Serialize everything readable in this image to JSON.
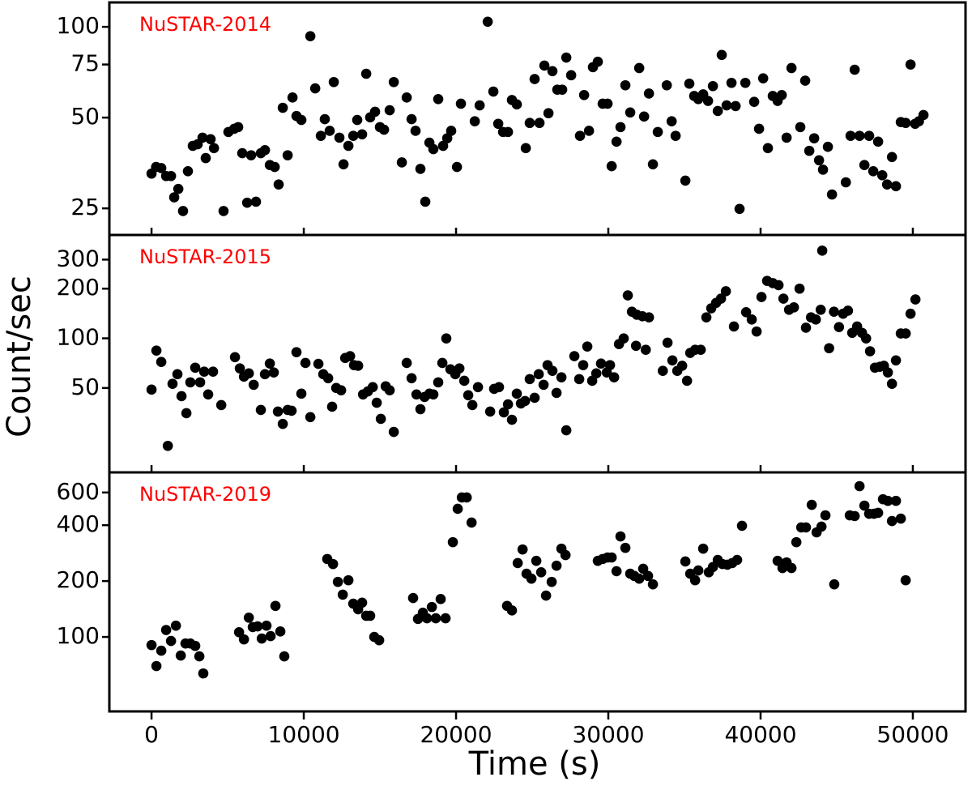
{
  "xlabel": "Time (s)",
  "ylabel": "Count/sec",
  "chart_data": [
    {
      "type": "scatter",
      "title": "NuSTAR-2014",
      "color": "#000000",
      "title_color": "#ff0000",
      "log_y": true,
      "xlim": [
        -2770,
        53460
      ],
      "ylim": [
        20.4,
        120.5
      ],
      "xticks": [
        0,
        10000,
        20000,
        30000,
        40000,
        50000
      ],
      "yticks": [
        25,
        50,
        75,
        100
      ],
      "x": [
        0,
        300,
        640,
        960,
        1280,
        1490,
        1760,
        2070,
        2390,
        2710,
        3030,
        3350,
        3560,
        3880,
        4100,
        4730,
        5050,
        5430,
        5690,
        5960,
        6280,
        6540,
        6860,
        7180,
        7450,
        7770,
        8090,
        8350,
        8620,
        8940,
        9260,
        9520,
        9840,
        10430,
        10750,
        11120,
        11380,
        11700,
        11970,
        12340,
        12610,
        12930,
        13250,
        13510,
        13830,
        14100,
        14360,
        14680,
        15000,
        15270,
        15640,
        15910,
        16440,
        16760,
        17080,
        17340,
        17660,
        17980,
        18250,
        18510,
        18830,
        19150,
        19420,
        19680,
        20060,
        20320,
        21230,
        21550,
        22080,
        22450,
        22770,
        23090,
        23410,
        23670,
        23990,
        24580,
        24840,
        25160,
        25480,
        25800,
        26070,
        26330,
        26650,
        26970,
        27240,
        27560,
        28140,
        28410,
        28730,
        28990,
        29310,
        29630,
        29950,
        30220,
        30540,
        30800,
        31120,
        31440,
        32030,
        32350,
        32670,
        32930,
        33250,
        33840,
        34160,
        34420,
        35060,
        35320,
        35640,
        35910,
        36230,
        36550,
        36870,
        37190,
        37450,
        37770,
        38090,
        38360,
        38620,
        39000,
        39580,
        39900,
        40170,
        40480,
        40800,
        41120,
        41390,
        41710,
        42030,
        42610,
        42930,
        43200,
        43520,
        43840,
        44100,
        44420,
        44690,
        45600,
        45910,
        46180,
        46500,
        46820,
        47130,
        47400,
        47720,
        47990,
        48310,
        48630,
        48890,
        49210,
        49530,
        49850,
        50150,
        50400,
        50700
      ],
      "values": [
        32.6,
        34.3,
        34.0,
        32.0,
        32.0,
        27.2,
        29.0,
        24.5,
        33.2,
        40.3,
        40.8,
        42.9,
        36.7,
        42.4,
        39.6,
        24.5,
        44.8,
        45.9,
        46.5,
        38.1,
        26.1,
        37.5,
        26.3,
        38.1,
        39.0,
        34.8,
        34.3,
        30.0,
        53.9,
        37.5,
        58.3,
        50.6,
        49.1,
        93.1,
        62.5,
        43.5,
        49.4,
        45.2,
        65.6,
        42.9,
        35.0,
        40.3,
        43.5,
        49.1,
        44.0,
        69.9,
        50.1,
        52.3,
        46.5,
        45.6,
        52.9,
        65.6,
        35.5,
        58.3,
        49.4,
        45.2,
        33.8,
        26.3,
        41.3,
        39.3,
        57.6,
        40.3,
        42.7,
        45.2,
        34.3,
        55.6,
        48.6,
        54.9,
        104.0,
        61.0,
        47.7,
        44.8,
        44.8,
        57.2,
        55.3,
        39.6,
        48.0,
        67.1,
        48.0,
        74.4,
        51.7,
        71.3,
        61.9,
        61.9,
        79.1,
        69.1,
        43.5,
        59.4,
        45.2,
        73.5,
        76.6,
        55.6,
        55.6,
        34.5,
        41.6,
        46.5,
        64.0,
        52.0,
        73.0,
        50.4,
        60.1,
        35.0,
        44.8,
        64.0,
        48.6,
        43.5,
        30.9,
        64.8,
        59.0,
        57.6,
        59.7,
        56.8,
        63.6,
        52.6,
        80.7,
        54.9,
        65.2,
        54.6,
        24.9,
        65.2,
        56.4,
        45.9,
        67.5,
        39.6,
        59.0,
        56.8,
        59.4,
        42.9,
        73.0,
        46.5,
        66.3,
        38.8,
        42.7,
        36.1,
        33.6,
        40.0,
        27.8,
        30.5,
        43.5,
        72.1,
        43.5,
        34.8,
        43.5,
        33.2,
        41.6,
        32.2,
        30.0,
        37.0,
        29.6,
        48.3,
        48.0,
        75.0,
        47.7,
        48.6,
        51.0
      ]
    },
    {
      "type": "scatter",
      "title": "NuSTAR-2015",
      "color": "#000000",
      "title_color": "#ff0000",
      "log_y": true,
      "xlim": [
        -2770,
        53460
      ],
      "ylim": [
        15.4,
        423
      ],
      "xticks": [
        0,
        10000,
        20000,
        30000,
        40000,
        50000
      ],
      "yticks": [
        50,
        100,
        200,
        300
      ],
      "x": [
        0,
        320,
        640,
        1070,
        1380,
        1700,
        1970,
        2290,
        2550,
        2870,
        3190,
        3460,
        3720,
        4040,
        4580,
        5480,
        5800,
        6070,
        6390,
        6710,
        7180,
        7450,
        7770,
        8030,
        8300,
        8620,
        8940,
        9200,
        9520,
        9840,
        10110,
        10430,
        10960,
        11280,
        11600,
        11860,
        12130,
        12450,
        12720,
        13040,
        13300,
        13570,
        13890,
        14210,
        14530,
        14790,
        15060,
        15380,
        15640,
        15910,
        16760,
        17080,
        17400,
        17660,
        17930,
        18250,
        18510,
        18830,
        19100,
        19360,
        19630,
        19950,
        20220,
        20540,
        20800,
        21070,
        21440,
        22240,
        22500,
        22820,
        23140,
        23410,
        23670,
        23990,
        24260,
        24530,
        24840,
        25160,
        25430,
        25750,
        26010,
        26330,
        26600,
        26920,
        27240,
        27770,
        28090,
        28350,
        28620,
        28940,
        29210,
        29520,
        29900,
        30110,
        30380,
        30700,
        31010,
        31280,
        31550,
        31870,
        32240,
        32670,
        31820,
        32460,
        33580,
        33890,
        34210,
        34530,
        34850,
        35170,
        35380,
        35700,
        36070,
        36440,
        36760,
        37080,
        37400,
        37720,
        38250,
        39050,
        39420,
        39740,
        40060,
        40430,
        40800,
        41180,
        41500,
        41870,
        42190,
        42560,
        42980,
        43310,
        43630,
        43950,
        44050,
        44500,
        44820,
        45150,
        45420,
        45740,
        46020,
        46340,
        46660,
        46930,
        47190,
        47510,
        47830,
        48100,
        48360,
        48630,
        48890,
        49210,
        49530,
        49850,
        50170
      ],
      "values": [
        48.9,
        84.3,
        71.9,
        22.3,
        53.0,
        60.6,
        44.6,
        35.2,
        54.1,
        66.4,
        54.1,
        62.8,
        45.7,
        62.8,
        39.4,
        76.9,
        65.7,
        58.6,
        61.3,
        52.3,
        36.8,
        60.6,
        70.3,
        62.1,
        36.0,
        30.3,
        36.8,
        36.4,
        82.4,
        46.2,
        70.9,
        33.3,
        70.0,
        60.6,
        57.3,
        38.5,
        50.0,
        48.4,
        76.0,
        78.0,
        68.8,
        68.2,
        45.7,
        47.7,
        50.6,
        40.7,
        32.5,
        51.2,
        48.4,
        27.1,
        70.9,
        57.3,
        45.7,
        37.2,
        44.1,
        46.2,
        45.7,
        54.1,
        70.9,
        99.8,
        64.9,
        60.6,
        65.7,
        55.3,
        45.2,
        39.4,
        50.6,
        36.0,
        49.4,
        50.6,
        35.6,
        39.8,
        32.1,
        46.2,
        40.3,
        41.7,
        56.6,
        43.6,
        60.6,
        52.3,
        68.8,
        63.5,
        46.7,
        58.0,
        27.7,
        78.0,
        56.6,
        68.8,
        89.2,
        55.3,
        61.3,
        70.3,
        62.1,
        68.8,
        58.0,
        92.2,
        99.8,
        182,
        145,
        139,
        136,
        134,
        90.1,
        85.2,
        63.5,
        94.1,
        73.5,
        63.5,
        68.2,
        55.3,
        81.6,
        85.2,
        85.2,
        134,
        152,
        164,
        174,
        193,
        118,
        144,
        130,
        110,
        178,
        223,
        216,
        210,
        174,
        149,
        154,
        200,
        116,
        134,
        130,
        149,
        340,
        87.1,
        145,
        117,
        141,
        147,
        108,
        118,
        108,
        99.8,
        83.5,
        66.4,
        67.2,
        68.2,
        62.1,
        53.0,
        73.5,
        107,
        107,
        141,
        172
      ]
    },
    {
      "type": "scatter",
      "title": "NuSTAR-2019",
      "color": "#000000",
      "title_color": "#ff0000",
      "log_y": true,
      "xlim": [
        -2770,
        53460
      ],
      "ylim": [
        39.7,
        770
      ],
      "xticks": [
        0,
        10000,
        20000,
        30000,
        40000,
        50000
      ],
      "yticks": [
        100,
        200,
        400,
        600
      ],
      "x": [
        0,
        320,
        640,
        960,
        1280,
        1600,
        1920,
        2230,
        2550,
        2870,
        3140,
        3400,
        5750,
        6070,
        6390,
        6650,
        6970,
        7240,
        7550,
        7820,
        8140,
        8460,
        8720,
        11540,
        11920,
        12240,
        12560,
        12930,
        13250,
        13570,
        13830,
        14100,
        14360,
        14630,
        14950,
        17180,
        17500,
        17820,
        18090,
        18410,
        18670,
        18990,
        19310,
        19790,
        20110,
        20380,
        20700,
        21020,
        23350,
        23670,
        24050,
        24370,
        24630,
        24950,
        25270,
        25590,
        25910,
        26280,
        26600,
        26920,
        27190,
        29310,
        29630,
        29950,
        30220,
        30540,
        30800,
        31120,
        31440,
        31710,
        32030,
        32290,
        32610,
        32930,
        35060,
        35380,
        35700,
        35910,
        36230,
        36600,
        36870,
        37190,
        37500,
        37820,
        38140,
        38460,
        38780,
        41120,
        41440,
        41710,
        42030,
        42350,
        42670,
        42980,
        43360,
        43680,
        44000,
        44260,
        44840,
        45860,
        46180,
        46500,
        46820,
        47130,
        47450,
        47720,
        48040,
        48360,
        48630,
        48890,
        49210,
        49530
      ],
      "values": [
        90.4,
        69.7,
        84.3,
        109,
        95.1,
        115,
        79.4,
        92.2,
        92.2,
        89.5,
        78.6,
        63.6,
        106,
        97,
        127,
        113,
        114,
        98,
        115,
        101,
        147,
        107,
        78.6,
        263,
        247,
        198,
        169,
        202,
        151,
        141,
        153,
        130,
        130,
        100,
        96,
        162,
        125,
        135,
        126,
        145,
        126,
        160,
        126,
        324,
        490,
        564,
        564,
        413,
        147,
        139,
        250,
        296,
        219,
        206,
        257,
        223,
        167,
        198,
        242,
        299,
        276,
        257,
        263,
        268,
        268,
        226,
        348,
        302,
        219,
        213,
        206,
        233,
        213,
        192,
        255,
        219,
        202,
        228,
        299,
        223,
        238,
        260,
        247,
        245,
        250,
        260,
        397,
        257,
        235,
        252,
        235,
        324,
        389,
        389,
        515,
        366,
        393,
        452,
        192,
        452,
        448,
        649,
        510,
        461,
        461,
        466,
        552,
        541,
        421,
        541,
        434,
        202
      ]
    }
  ]
}
